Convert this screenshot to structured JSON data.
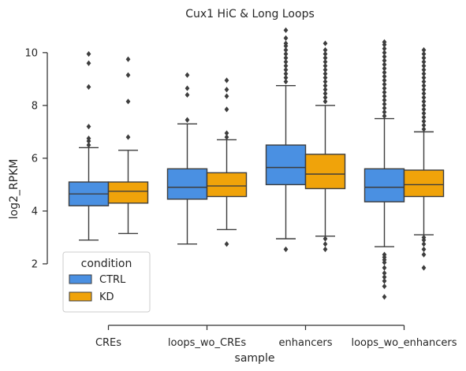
{
  "chart_data": {
    "type": "box",
    "title": "Cux1 HiC & Long Loops",
    "xlabel": "sample",
    "ylabel": "log2_RPKM",
    "categories": [
      "CREs",
      "loops_wo_CREs",
      "enhancers",
      "loops_wo_enhancers"
    ],
    "ylim": [
      0,
      10.8
    ],
    "yticks": [
      2,
      4,
      6,
      8,
      10
    ],
    "legend": {
      "title": "condition",
      "position": "lower-left"
    },
    "series": [
      {
        "name": "CTRL",
        "color": "#4a90e2",
        "boxes": [
          {
            "category": "CREs",
            "whislo": 2.9,
            "q1": 4.2,
            "median": 4.65,
            "q3": 5.1,
            "whishi": 6.4,
            "fliers": [
              6.5,
              6.65,
              6.75,
              7.2,
              8.7,
              9.6,
              9.95
            ]
          },
          {
            "category": "loops_wo_CREs",
            "whislo": 2.75,
            "q1": 4.45,
            "median": 4.9,
            "q3": 5.6,
            "whishi": 7.3,
            "fliers": [
              7.45,
              8.4,
              8.65,
              9.15
            ]
          },
          {
            "category": "enhancers",
            "whislo": 2.95,
            "q1": 5.0,
            "median": 5.65,
            "q3": 6.5,
            "whishi": 8.75,
            "fliers": [
              2.55,
              8.9,
              9.05,
              9.2,
              9.35,
              9.5,
              9.65,
              9.8,
              9.95,
              10.1,
              10.25,
              10.35,
              10.55,
              10.85
            ]
          },
          {
            "category": "loops_wo_enhancers",
            "whislo": 2.65,
            "q1": 4.35,
            "median": 4.9,
            "q3": 5.6,
            "whishi": 7.5,
            "fliers": [
              0.75,
              1.15,
              1.35,
              1.5,
              1.65,
              1.85,
              2.05,
              2.15,
              2.25,
              2.35,
              7.6,
              7.75,
              7.9,
              8.05,
              8.2,
              8.35,
              8.5,
              8.65,
              8.8,
              8.95,
              9.1,
              9.25,
              9.4,
              9.55,
              9.7,
              9.85,
              10.0,
              10.15,
              10.3,
              10.4
            ]
          }
        ]
      },
      {
        "name": "KD",
        "color": "#f0a30a",
        "boxes": [
          {
            "category": "CREs",
            "whislo": 3.15,
            "q1": 4.3,
            "median": 4.75,
            "q3": 5.1,
            "whishi": 6.3,
            "fliers": [
              6.8,
              8.15,
              9.15,
              9.75
            ]
          },
          {
            "category": "loops_wo_CREs",
            "whislo": 3.3,
            "q1": 4.55,
            "median": 4.95,
            "q3": 5.45,
            "whishi": 6.7,
            "fliers": [
              2.75,
              6.8,
              6.95,
              7.85,
              8.35,
              8.6,
              8.95
            ]
          },
          {
            "category": "enhancers",
            "whislo": 3.05,
            "q1": 4.85,
            "median": 5.4,
            "q3": 6.15,
            "whishi": 8.0,
            "fliers": [
              2.55,
              2.75,
              2.95,
              8.15,
              8.3,
              8.45,
              8.6,
              8.75,
              8.9,
              9.05,
              9.2,
              9.35,
              9.5,
              9.65,
              9.8,
              9.95,
              10.1,
              10.35
            ]
          },
          {
            "category": "loops_wo_enhancers",
            "whislo": 3.1,
            "q1": 4.55,
            "median": 5.0,
            "q3": 5.55,
            "whishi": 7.0,
            "fliers": [
              1.85,
              2.35,
              2.55,
              2.75,
              2.9,
              3.0,
              7.1,
              7.25,
              7.4,
              7.55,
              7.7,
              7.85,
              8.0,
              8.15,
              8.3,
              8.45,
              8.6,
              8.75,
              8.9,
              9.05,
              9.2,
              9.35,
              9.5,
              9.65,
              9.8,
              9.95,
              10.1
            ]
          }
        ]
      }
    ]
  }
}
